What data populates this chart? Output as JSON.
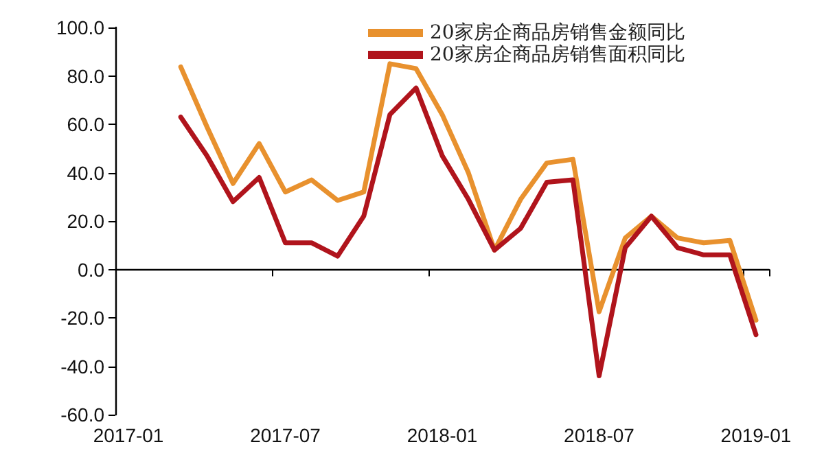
{
  "chart_data": {
    "type": "line",
    "categories": [
      "2017-01",
      null,
      null,
      null,
      null,
      null,
      "2017-07",
      null,
      null,
      null,
      null,
      null,
      "2018-01",
      null,
      null,
      null,
      null,
      null,
      "2018-07",
      null,
      null,
      null,
      null,
      null,
      "2019-01"
    ],
    "series": [
      {
        "name": "20家房企商品房销售金额同比",
        "color": "#e8912e",
        "values": [
          null,
          null,
          83.7,
          59,
          35.5,
          52,
          32,
          37,
          28.5,
          32,
          85,
          83,
          64,
          40,
          8,
          29,
          44,
          45.5,
          -17.5,
          13,
          22,
          13,
          11,
          12,
          -21
        ]
      },
      {
        "name": "20家房企商品房销售面积同比",
        "color": "#b0141c",
        "values": [
          null,
          null,
          63,
          47,
          28,
          38,
          11,
          11,
          5.5,
          22,
          64,
          75,
          47,
          29,
          8,
          17,
          36,
          37,
          -44,
          9,
          22,
          9,
          6,
          6,
          -27
        ]
      }
    ],
    "ylim": [
      -60,
      100
    ],
    "yticks": [
      {
        "value": -60,
        "label": "-60.0"
      },
      {
        "value": -40,
        "label": "-40.0"
      },
      {
        "value": -20,
        "label": "-20.0"
      },
      {
        "value": 0,
        "label": "0.0"
      },
      {
        "value": 20,
        "label": "20.0"
      },
      {
        "value": 40,
        "label": "40.0"
      },
      {
        "value": 60,
        "label": "60.0"
      },
      {
        "value": 80,
        "label": "80.0"
      },
      {
        "value": 100,
        "label": "100.0"
      }
    ],
    "legend": "top",
    "marker": "none",
    "line_style": "solid"
  }
}
